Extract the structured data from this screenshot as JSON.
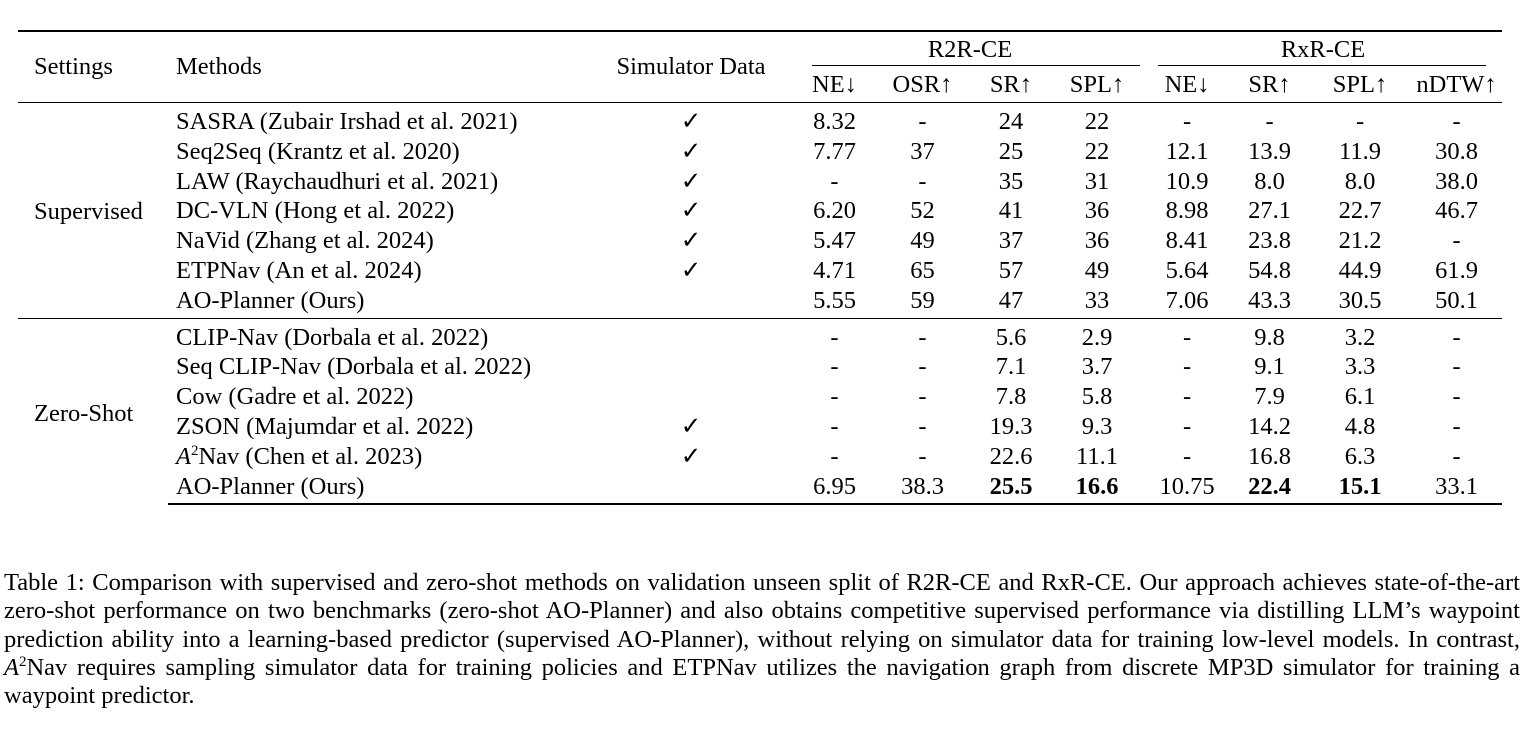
{
  "table": {
    "headers": {
      "settings": "Settings",
      "methods": "Methods",
      "simulator_data": "Simulator Data",
      "r2r_group": "R2R-CE",
      "rxr_group": "RxR-CE",
      "r2r_cols": [
        "NE↓",
        "OSR↑",
        "SR↑",
        "SPL↑"
      ],
      "rxr_cols": [
        "NE↓",
        "SR↑",
        "SPL↑",
        "nDTW↑"
      ]
    },
    "groups": [
      {
        "setting": "Supervised",
        "rows": [
          {
            "method": "SASRA (Zubair Irshad et al. 2021)",
            "sim": "✓",
            "r2r": [
              "8.32",
              "-",
              "24",
              "22"
            ],
            "rxr": [
              "-",
              "-",
              "-",
              "-"
            ]
          },
          {
            "method": "Seq2Seq (Krantz et al. 2020)",
            "sim": "✓",
            "r2r": [
              "7.77",
              "37",
              "25",
              "22"
            ],
            "rxr": [
              "12.1",
              "13.9",
              "11.9",
              "30.8"
            ]
          },
          {
            "method": "LAW (Raychaudhuri et al. 2021)",
            "sim": "✓",
            "r2r": [
              "-",
              "-",
              "35",
              "31"
            ],
            "rxr": [
              "10.9",
              "8.0",
              "8.0",
              "38.0"
            ]
          },
          {
            "method": "DC-VLN (Hong et al. 2022)",
            "sim": "✓",
            "r2r": [
              "6.20",
              "52",
              "41",
              "36"
            ],
            "rxr": [
              "8.98",
              "27.1",
              "22.7",
              "46.7"
            ]
          },
          {
            "method": "NaVid (Zhang et al. 2024)",
            "sim": "✓",
            "r2r": [
              "5.47",
              "49",
              "37",
              "36"
            ],
            "rxr": [
              "8.41",
              "23.8",
              "21.2",
              "-"
            ]
          },
          {
            "method": "ETPNav (An et al. 2024)",
            "sim": "✓",
            "r2r": [
              "4.71",
              "65",
              "57",
              "49"
            ],
            "rxr": [
              "5.64",
              "54.8",
              "44.9",
              "61.9"
            ]
          },
          {
            "method": "AO-Planner (Ours)",
            "sim": "",
            "r2r": [
              "5.55",
              "59",
              "47",
              "33"
            ],
            "rxr": [
              "7.06",
              "43.3",
              "30.5",
              "50.1"
            ]
          }
        ]
      },
      {
        "setting": "Zero-Shot",
        "rows": [
          {
            "method": "CLIP-Nav (Dorbala et al. 2022)",
            "sim": "",
            "r2r": [
              "-",
              "-",
              "5.6",
              "2.9"
            ],
            "rxr": [
              "-",
              "9.8",
              "3.2",
              "-"
            ]
          },
          {
            "method": "Seq CLIP-Nav (Dorbala et al. 2022)",
            "sim": "",
            "r2r": [
              "-",
              "-",
              "7.1",
              "3.7"
            ],
            "rxr": [
              "-",
              "9.1",
              "3.3",
              "-"
            ]
          },
          {
            "method": "Cow (Gadre et al. 2022)",
            "sim": "",
            "r2r": [
              "-",
              "-",
              "7.8",
              "5.8"
            ],
            "rxr": [
              "-",
              "7.9",
              "6.1",
              "-"
            ]
          },
          {
            "method": "ZSON (Majumdar et al. 2022)",
            "sim": "✓",
            "r2r": [
              "-",
              "-",
              "19.3",
              "9.3"
            ],
            "rxr": [
              "-",
              "14.2",
              "4.8",
              "-"
            ]
          },
          {
            "method_parts": {
              "var": "A",
              "sup": "2",
              "rest": "Nav (Chen et al. 2023)"
            },
            "sim": "✓",
            "r2r": [
              "-",
              "-",
              "22.6",
              "11.1"
            ],
            "rxr": [
              "-",
              "16.8",
              "6.3",
              "-"
            ]
          },
          {
            "method": "AO-Planner (Ours)",
            "sim": "",
            "r2r": [
              "6.95",
              "38.3",
              "25.5",
              "16.6"
            ],
            "rxr": [
              "10.75",
              "22.4",
              "15.1",
              "33.1"
            ]
          }
        ]
      }
    ]
  },
  "caption": {
    "part1": "Table 1: Comparison with supervised and zero-shot methods on validation unseen split of R2R-CE and RxR-CE. Our approach achieves state-of-the-art zero-shot performance on two benchmarks (zero-shot AO-Planner) and also obtains competitive supervised performance via distilling LLM’s waypoint prediction ability into a learning-based predictor (supervised AO-Planner), without relying on simulator data for training low-level models. In contrast, ",
    "var": "A",
    "sup": "2",
    "part2": "Nav requires sampling simulator data for training policies and ETPNav utilizes the navigation graph from discrete MP3D simulator for training a waypoint predictor."
  }
}
